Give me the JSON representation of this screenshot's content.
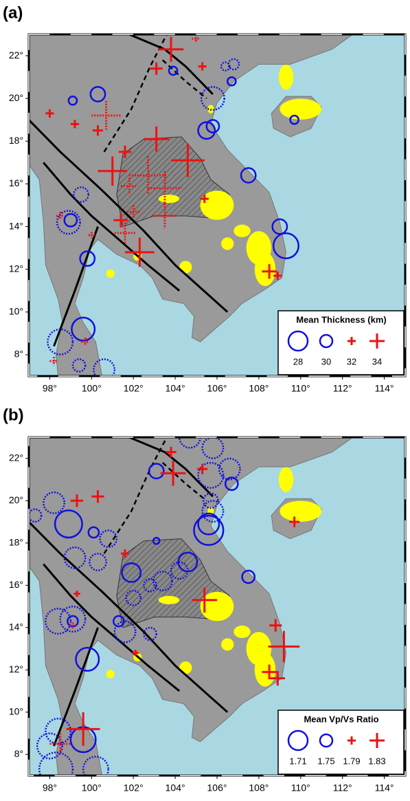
{
  "panels": [
    {
      "label": "(a)",
      "legend": {
        "title": "Mean Thickness (km)",
        "items": [
          28,
          30,
          32,
          34
        ]
      },
      "xlim": [
        97,
        115
      ],
      "ylim": [
        7,
        23
      ],
      "xticks": [
        {
          "value": 98,
          "label": "98°"
        },
        {
          "value": 100,
          "label": "100°"
        },
        {
          "value": 102,
          "label": "102°"
        },
        {
          "value": 104,
          "label": "104°"
        },
        {
          "value": 106,
          "label": "106°"
        },
        {
          "value": 108,
          "label": "108°"
        },
        {
          "value": 110,
          "label": "110°"
        },
        {
          "value": 112,
          "label": "112°"
        },
        {
          "value": 114,
          "label": "114°"
        }
      ],
      "yticks": [
        {
          "value": 8,
          "label": "8°"
        },
        {
          "value": 10,
          "label": "10°"
        },
        {
          "value": 12,
          "label": "12°"
        },
        {
          "value": 14,
          "label": "14°"
        },
        {
          "value": 16,
          "label": "16°"
        },
        {
          "value": 18,
          "label": "18°"
        },
        {
          "value": 20,
          "label": "20°"
        },
        {
          "value": 22,
          "label": "22°"
        }
      ]
    },
    {
      "label": "(b)",
      "legend": {
        "title": "Mean Vp/Vs Ratio",
        "items": [
          1.71,
          1.75,
          1.79,
          1.83
        ]
      },
      "xlim": [
        97,
        115
      ],
      "ylim": [
        7,
        23
      ],
      "xticks": [
        {
          "value": 98,
          "label": "98°"
        },
        {
          "value": 100,
          "label": "100°"
        },
        {
          "value": 102,
          "label": "102°"
        },
        {
          "value": 104,
          "label": "104°"
        },
        {
          "value": 106,
          "label": "106°"
        },
        {
          "value": 108,
          "label": "108°"
        },
        {
          "value": 110,
          "label": "110°"
        },
        {
          "value": 112,
          "label": "112°"
        },
        {
          "value": 114,
          "label": "114°"
        }
      ],
      "yticks": [
        {
          "value": 8,
          "label": "8°"
        },
        {
          "value": 10,
          "label": "10°"
        },
        {
          "value": 12,
          "label": "12°"
        },
        {
          "value": 14,
          "label": "14°"
        },
        {
          "value": 16,
          "label": "16°"
        },
        {
          "value": 18,
          "label": "18°"
        },
        {
          "value": 20,
          "label": "20°"
        },
        {
          "value": 22,
          "label": "22°"
        }
      ]
    }
  ]
}
